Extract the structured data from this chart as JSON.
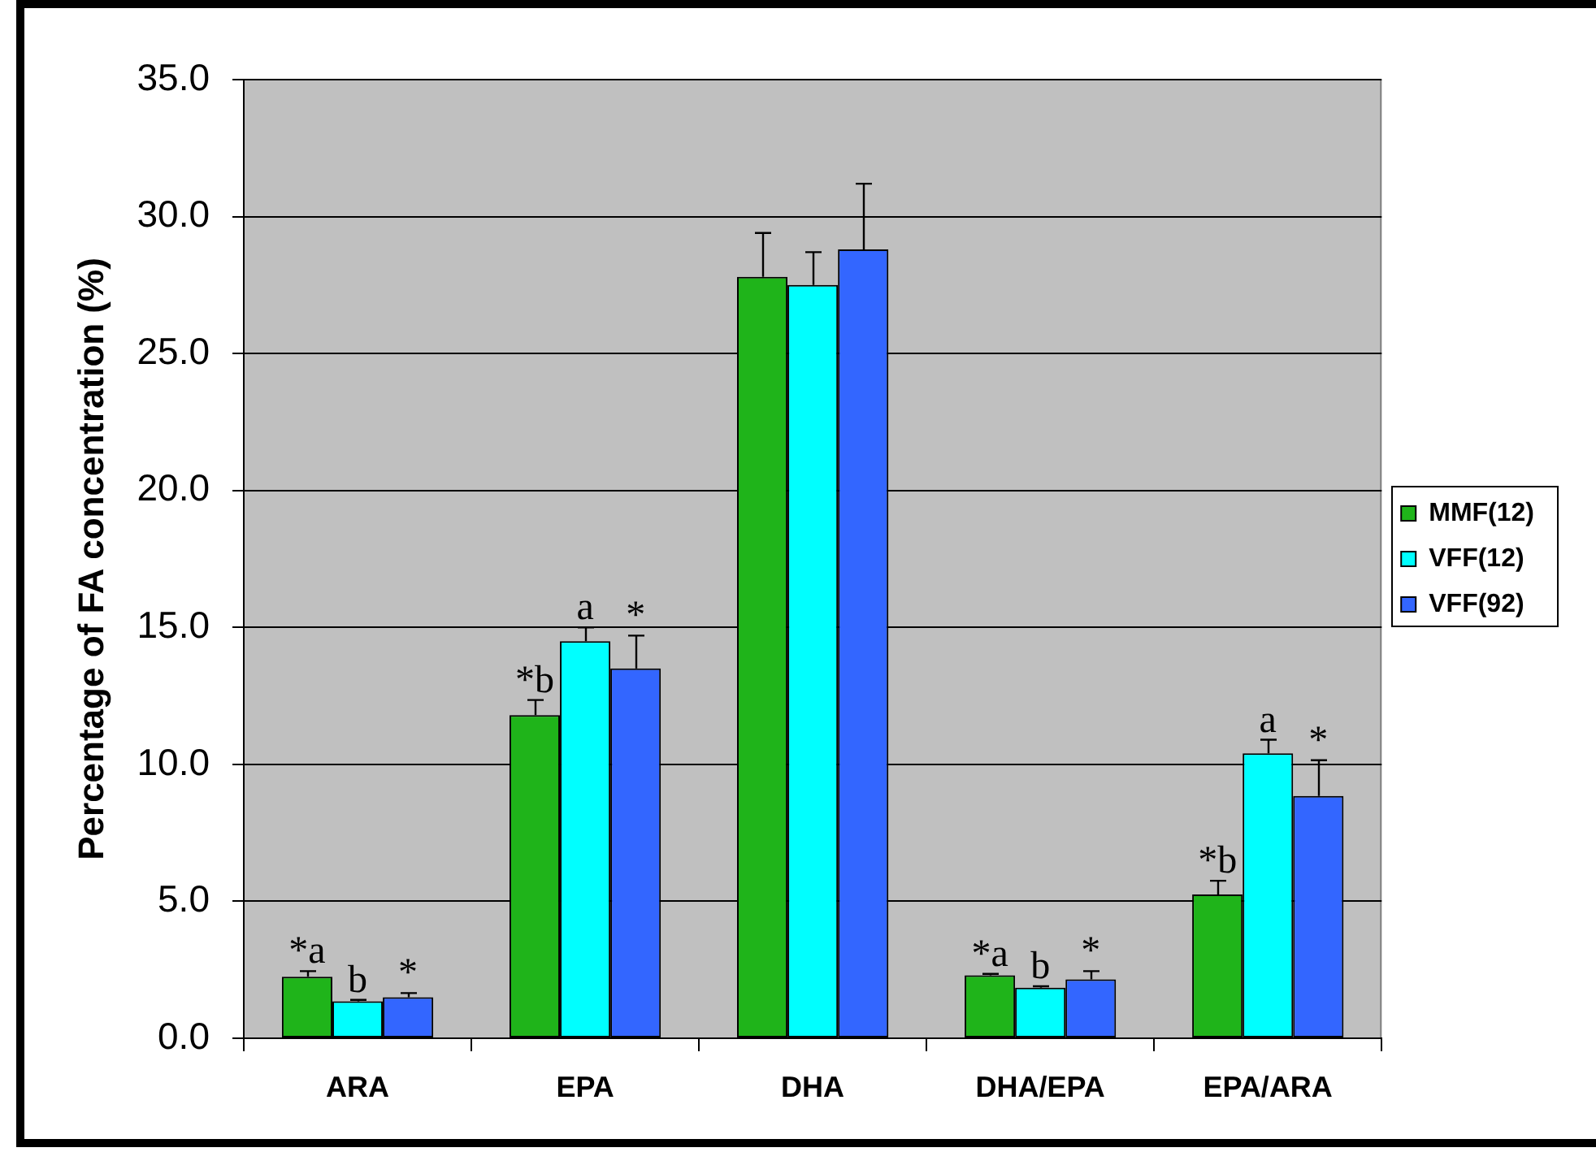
{
  "chart_data": {
    "type": "bar",
    "ylabel": "Percentage of FA concentration (%)",
    "categories": [
      "ARA",
      "EPA",
      "DHA",
      "DHA/EPA",
      "EPA/ARA"
    ],
    "series": [
      {
        "name": "MMF(12)",
        "color": "#1fb41a",
        "values": [
          2.25,
          11.8,
          27.8,
          2.3,
          5.25
        ],
        "errors": [
          [
            2.25,
            2.45
          ],
          [
            11.8,
            12.35
          ],
          [
            27.8,
            29.4
          ],
          [
            2.3,
            2.35
          ],
          [
            5.25,
            5.75
          ]
        ],
        "value_labels": [
          "*a",
          "*b",
          null,
          "*a",
          "*b"
        ]
      },
      {
        "name": "VFF(12)",
        "color": "#00ffff",
        "values": [
          1.35,
          14.5,
          27.5,
          1.85,
          10.4
        ],
        "errors": [
          [
            1.35,
            1.4
          ],
          [
            14.5,
            15.0
          ],
          [
            27.5,
            28.7
          ],
          [
            1.85,
            1.9
          ],
          [
            10.4,
            10.9
          ]
        ],
        "value_labels": [
          "b",
          "a",
          null,
          "b",
          "a"
        ]
      },
      {
        "name": "VFF(92)",
        "color": "#3366ff",
        "values": [
          1.5,
          13.5,
          28.8,
          2.15,
          8.85
        ],
        "errors": [
          [
            1.5,
            1.65
          ],
          [
            13.5,
            14.7
          ],
          [
            28.8,
            31.2
          ],
          [
            2.15,
            2.45
          ],
          [
            8.85,
            10.15
          ]
        ],
        "value_labels": [
          "*",
          "*",
          null,
          "*",
          "*"
        ]
      }
    ],
    "ylim": [
      0,
      35
    ],
    "yticks": [
      {
        "value": 0,
        "label": "0.0"
      },
      {
        "value": 5,
        "label": "5.0"
      },
      {
        "value": 10,
        "label": "10.0"
      },
      {
        "value": 15,
        "label": "15.0"
      },
      {
        "value": 20,
        "label": "20.0"
      },
      {
        "value": 25,
        "label": "25.0"
      },
      {
        "value": 30,
        "label": "30.0"
      },
      {
        "value": 35,
        "label": "35.0"
      }
    ],
    "grid": "y",
    "legend": "right"
  }
}
